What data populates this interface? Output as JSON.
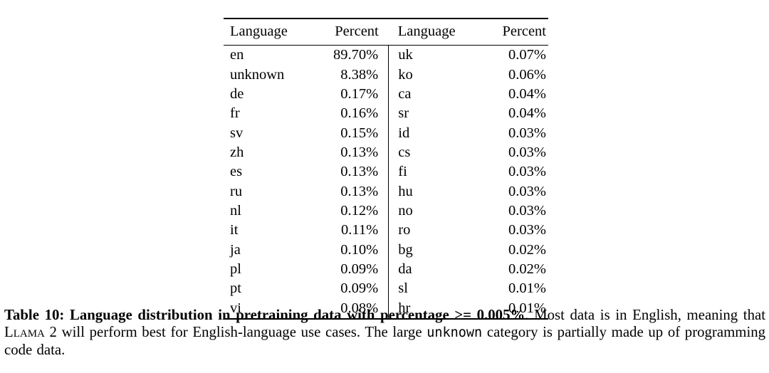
{
  "page": {
    "background": "#ffffff",
    "text_color": "#000000"
  },
  "table": {
    "headers": [
      "Language",
      "Percent",
      "Language",
      "Percent"
    ],
    "rows": [
      [
        "en",
        "89.70%",
        "uk",
        "0.07%"
      ],
      [
        "unknown",
        "8.38%",
        "ko",
        "0.06%"
      ],
      [
        "de",
        "0.17%",
        "ca",
        "0.04%"
      ],
      [
        "fr",
        "0.16%",
        "sr",
        "0.04%"
      ],
      [
        "sv",
        "0.15%",
        "id",
        "0.03%"
      ],
      [
        "zh",
        "0.13%",
        "cs",
        "0.03%"
      ],
      [
        "es",
        "0.13%",
        "fi",
        "0.03%"
      ],
      [
        "ru",
        "0.13%",
        "hu",
        "0.03%"
      ],
      [
        "nl",
        "0.12%",
        "no",
        "0.03%"
      ],
      [
        "it",
        "0.11%",
        "ro",
        "0.03%"
      ],
      [
        "ja",
        "0.10%",
        "bg",
        "0.02%"
      ],
      [
        "pl",
        "0.09%",
        "da",
        "0.02%"
      ],
      [
        "pt",
        "0.09%",
        "sl",
        "0.01%"
      ],
      [
        "vi",
        "0.08%",
        "hr",
        "0.01%"
      ]
    ]
  },
  "caption": {
    "bold": "Table 10: Language distribution in pretraining data with percentage >= 0.005%",
    "seg1": ". Most data is in English, meaning that ",
    "llama": "Llama 2",
    "seg2": " will perform best for English-language use cases. The large ",
    "unknown_word": "unknown",
    "seg3": " category is partially made up of programming code data."
  }
}
